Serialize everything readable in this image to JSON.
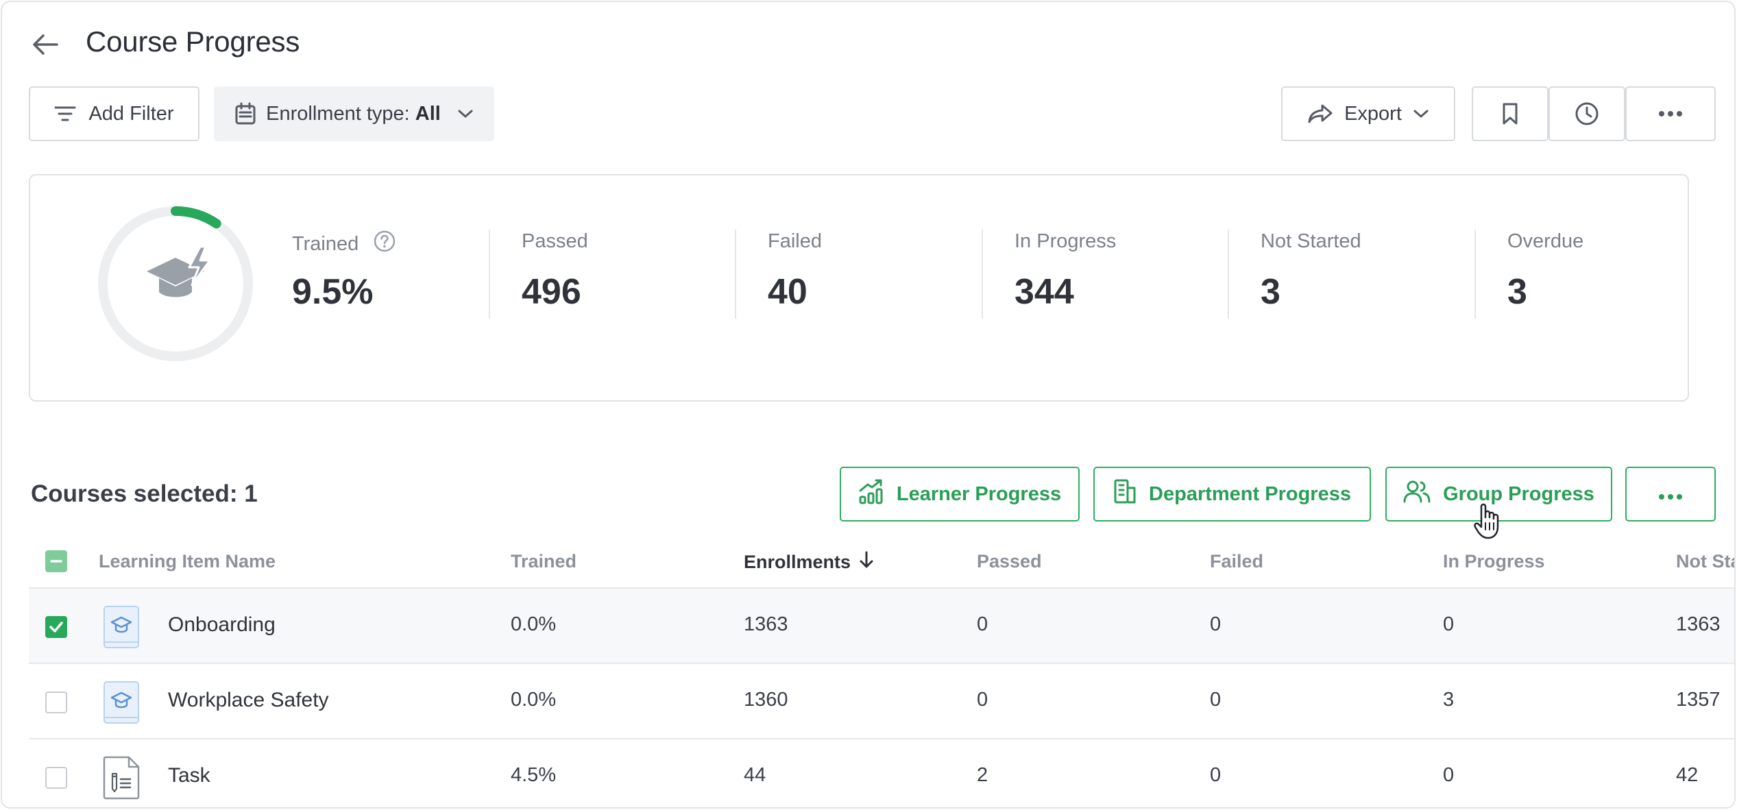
{
  "header": {
    "title": "Course Progress"
  },
  "toolbar": {
    "add_filter": "Add Filter",
    "enrollment_prefix": "Enrollment type: ",
    "enrollment_value": "All",
    "export": "Export"
  },
  "stats": {
    "trained_ratio": 0.095,
    "items": [
      {
        "label": "Trained",
        "value": "9.5%"
      },
      {
        "label": "Passed",
        "value": "496"
      },
      {
        "label": "Failed",
        "value": "40"
      },
      {
        "label": "In Progress",
        "value": "344"
      },
      {
        "label": "Not Started",
        "value": "3"
      },
      {
        "label": "Overdue",
        "value": "3"
      }
    ]
  },
  "section": {
    "courses_selected": "Courses selected: 1",
    "learner_progress": "Learner Progress",
    "department_progress": "Department Progress",
    "group_progress": "Group Progress"
  },
  "table": {
    "columns": [
      "Learning Item Name",
      "Trained",
      "Enrollments",
      "Passed",
      "Failed",
      "In Progress",
      "Not Sta"
    ],
    "rows": [
      {
        "name": "Onboarding",
        "icon": "course-icon",
        "checked": true,
        "trained": "0.0%",
        "enrollments": "1363",
        "passed": "0",
        "failed": "0",
        "in_progress": "0",
        "not_started": "1363"
      },
      {
        "name": "Workplace Safety",
        "icon": "course-icon",
        "checked": false,
        "trained": "0.0%",
        "enrollments": "1360",
        "passed": "0",
        "failed": "0",
        "in_progress": "3",
        "not_started": "1357"
      },
      {
        "name": "Task",
        "icon": "task-icon",
        "checked": false,
        "trained": "4.5%",
        "enrollments": "44",
        "passed": "2",
        "failed": "0",
        "in_progress": "0",
        "not_started": "42"
      }
    ]
  },
  "colors": {
    "accent": "#27a85a",
    "ring_track": "#eceef0",
    "text": "#2b2f36",
    "muted": "#8c919a"
  }
}
